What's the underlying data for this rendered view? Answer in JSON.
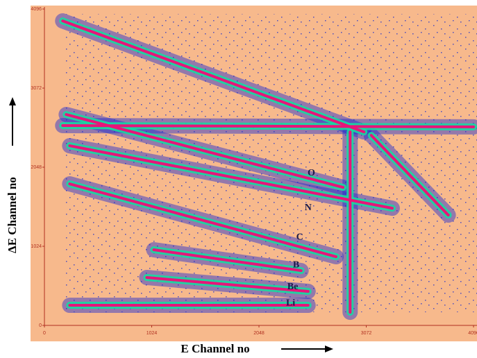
{
  "chart_data": {
    "type": "line",
    "xlabel": "E Channel no",
    "ylabel": "ΔE Channel no",
    "xlim": [
      0,
      4096
    ],
    "ylim": [
      0,
      4096
    ],
    "xticks": [
      0,
      1024,
      2048,
      3072,
      4096
    ],
    "yticks": [
      0,
      1024,
      2048,
      3072,
      4096
    ],
    "series": [
      {
        "x": [
          174,
          3050
        ],
        "values": [
          3942,
          2505
        ]
      },
      {
        "x": [
          174,
          4096
        ],
        "values": [
          2587,
          2570
        ]
      },
      {
        "x": [
          2918,
          2918
        ],
        "values": [
          2505,
          170
        ]
      },
      {
        "x": [
          208,
          2850
        ],
        "values": [
          2730,
          1787
        ]
      },
      {
        "x": [
          3120,
          3855
        ],
        "values": [
          2460,
          1428
        ]
      },
      {
        "x": [
          241,
          3320
        ],
        "values": [
          2326,
          1517
        ]
      },
      {
        "x": [
          241,
          2784
        ],
        "values": [
          1832,
          889
        ]
      },
      {
        "x": [
          1044,
          2450
        ],
        "values": [
          979,
          709
        ]
      },
      {
        "x": [
          977,
          2517
        ],
        "values": [
          620,
          440
        ]
      },
      {
        "x": [
          241,
          2517
        ],
        "values": [
          260,
          260
        ]
      }
    ],
    "annotations": [
      {
        "text": "O",
        "x": 2548,
        "y": 1967
      },
      {
        "text": "N",
        "x": 2517,
        "y": 1518
      },
      {
        "text": "C",
        "x": 2437,
        "y": 1140
      },
      {
        "text": "B",
        "x": 2403,
        "y": 781
      },
      {
        "text": "Be",
        "x": 2370,
        "y": 494
      },
      {
        "text": "Li",
        "x": 2350,
        "y": 287
      }
    ]
  }
}
